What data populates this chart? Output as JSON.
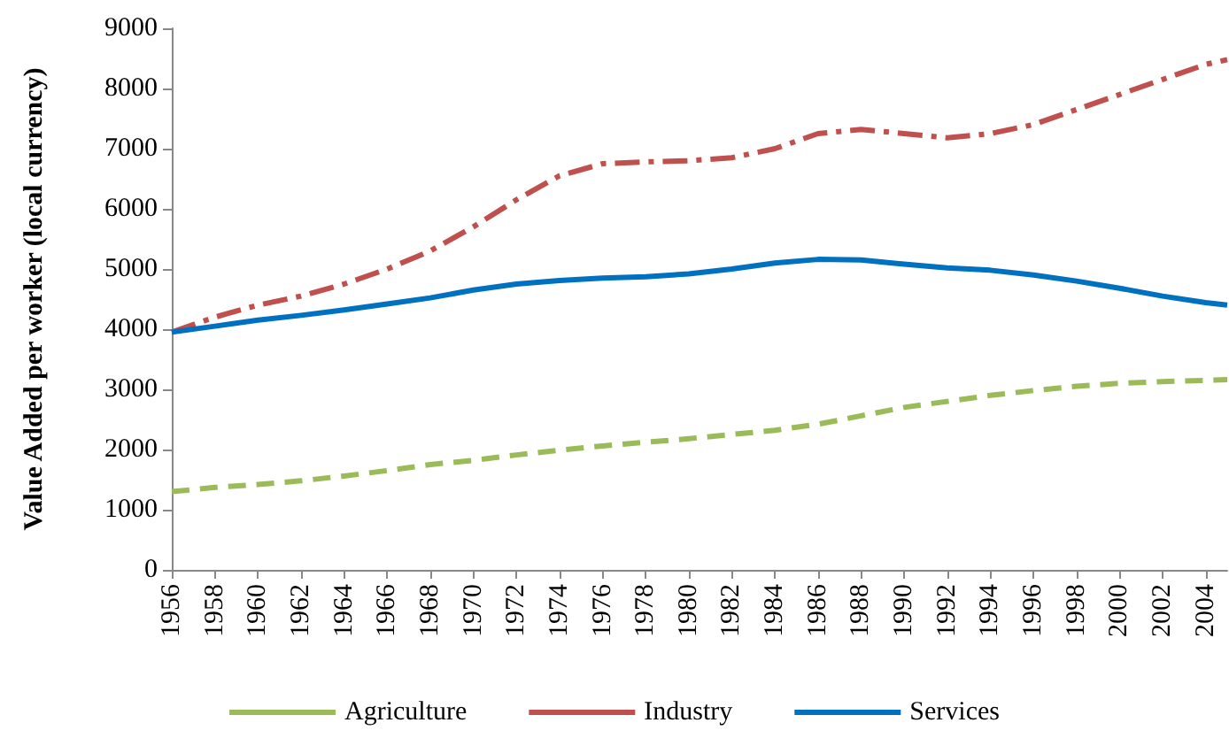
{
  "chart_data": {
    "type": "line",
    "ylabel": "Value Added per worker (local currency)",
    "x": [
      1956,
      1958,
      1960,
      1962,
      1964,
      1966,
      1968,
      1970,
      1972,
      1974,
      1976,
      1978,
      1980,
      1982,
      1984,
      1986,
      1988,
      1990,
      1992,
      1994,
      1996,
      1998,
      2000,
      2002,
      2004,
      2005
    ],
    "series": [
      {
        "name": "Agriculture",
        "color": "#9bbb59",
        "line_style": "dashed",
        "values": [
          1300,
          1370,
          1420,
          1480,
          1560,
          1650,
          1750,
          1820,
          1910,
          1990,
          2060,
          2120,
          2180,
          2250,
          2320,
          2420,
          2560,
          2700,
          2800,
          2900,
          2980,
          3050,
          3100,
          3130,
          3150,
          3160
        ]
      },
      {
        "name": "Industry",
        "color": "#c0504d",
        "line_style": "dashdot",
        "values": [
          3950,
          4200,
          4400,
          4550,
          4750,
          5000,
          5300,
          5700,
          6150,
          6550,
          6750,
          6780,
          6800,
          6850,
          7000,
          7250,
          7320,
          7250,
          7180,
          7250,
          7400,
          7650,
          7900,
          8150,
          8400,
          8480
        ]
      },
      {
        "name": "Services",
        "color": "#0070c0",
        "line_style": "solid",
        "values": [
          3950,
          4050,
          4150,
          4230,
          4320,
          4420,
          4520,
          4650,
          4750,
          4810,
          4850,
          4870,
          4920,
          5000,
          5100,
          5160,
          5150,
          5080,
          5020,
          4980,
          4900,
          4800,
          4680,
          4550,
          4440,
          4400
        ]
      }
    ],
    "xlim": [
      1956,
      2005
    ],
    "xticks": [
      1956,
      1958,
      1960,
      1962,
      1964,
      1966,
      1968,
      1970,
      1972,
      1974,
      1976,
      1978,
      1980,
      1982,
      1984,
      1986,
      1988,
      1990,
      1992,
      1994,
      1996,
      1998,
      2000,
      2002,
      2004
    ],
    "ylim": [
      0,
      9000
    ],
    "yticks": [
      0,
      1000,
      2000,
      3000,
      4000,
      5000,
      6000,
      7000,
      8000,
      9000
    ],
    "grid": false,
    "legend": "bottom",
    "marker": "none"
  }
}
